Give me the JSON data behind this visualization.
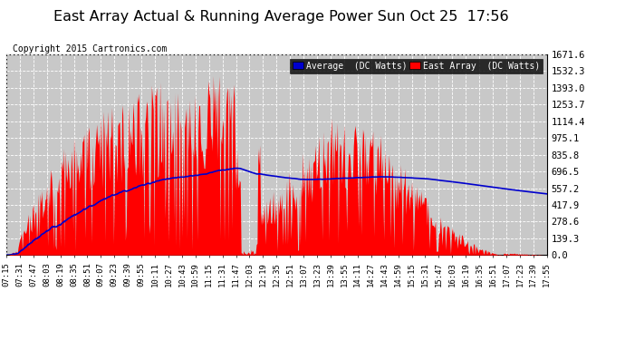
{
  "title": "East Array Actual & Running Average Power Sun Oct 25  17:56",
  "copyright": "Copyright 2015 Cartronics.com",
  "legend_avg": "Average  (DC Watts)",
  "legend_east": "East Array  (DC Watts)",
  "ymax": 1671.6,
  "yticks": [
    0.0,
    139.3,
    278.6,
    417.9,
    557.2,
    696.5,
    835.8,
    975.1,
    1114.4,
    1253.7,
    1393.0,
    1532.3,
    1671.6
  ],
  "background_color": "#ffffff",
  "plot_bg_color": "#c8c8c8",
  "grid_color": "#ffffff",
  "fill_color": "#ff0000",
  "avg_line_color": "#0000cd",
  "title_fontsize": 12,
  "xtick_labels": [
    "07:15",
    "07:31",
    "07:47",
    "08:03",
    "08:19",
    "08:35",
    "08:51",
    "09:07",
    "09:23",
    "09:39",
    "09:55",
    "10:11",
    "10:27",
    "10:43",
    "10:59",
    "11:15",
    "11:31",
    "11:47",
    "12:03",
    "12:19",
    "12:35",
    "12:51",
    "13:07",
    "13:23",
    "13:39",
    "13:55",
    "14:11",
    "14:27",
    "14:43",
    "14:59",
    "15:15",
    "15:31",
    "15:47",
    "16:03",
    "16:19",
    "16:35",
    "16:51",
    "17:07",
    "17:23",
    "17:39",
    "17:55"
  ]
}
